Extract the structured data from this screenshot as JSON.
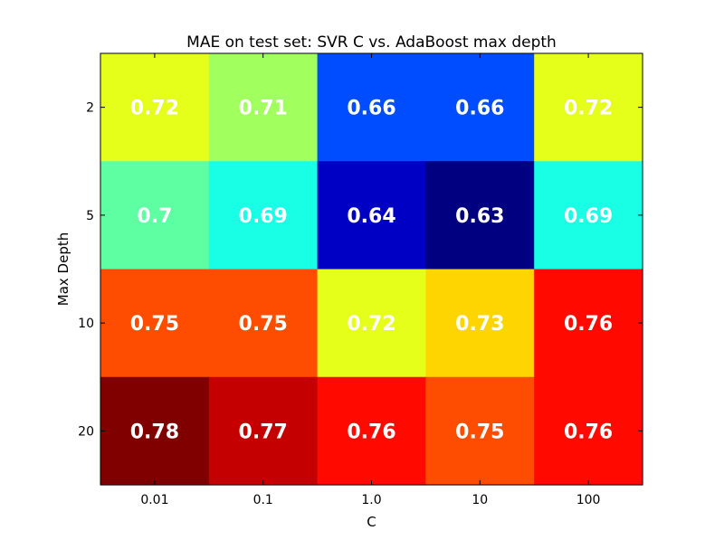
{
  "chart_data": {
    "type": "heatmap",
    "title": "MAE on test set: SVR C vs. AdaBoost max depth",
    "xlabel": "C",
    "ylabel": "Max Depth",
    "x_categories": [
      "0.01",
      "0.1",
      "1.0",
      "10",
      "100"
    ],
    "y_categories": [
      "2",
      "5",
      "10",
      "20"
    ],
    "values": [
      [
        0.72,
        0.71,
        0.66,
        0.66,
        0.72
      ],
      [
        0.7,
        0.69,
        0.64,
        0.63,
        0.69
      ],
      [
        0.75,
        0.75,
        0.72,
        0.73,
        0.76
      ],
      [
        0.78,
        0.77,
        0.76,
        0.75,
        0.76
      ]
    ],
    "cell_labels": [
      [
        "0.72",
        "0.71",
        "0.66",
        "0.66",
        "0.72"
      ],
      [
        "0.7",
        "0.69",
        "0.64",
        "0.63",
        "0.69"
      ],
      [
        "0.75",
        "0.75",
        "0.72",
        "0.73",
        "0.76"
      ],
      [
        "0.78",
        "0.77",
        "0.76",
        "0.75",
        "0.76"
      ]
    ],
    "colormap": "jet",
    "value_range": [
      0.63,
      0.78
    ],
    "grid": false,
    "label_color": "#ffffff"
  }
}
